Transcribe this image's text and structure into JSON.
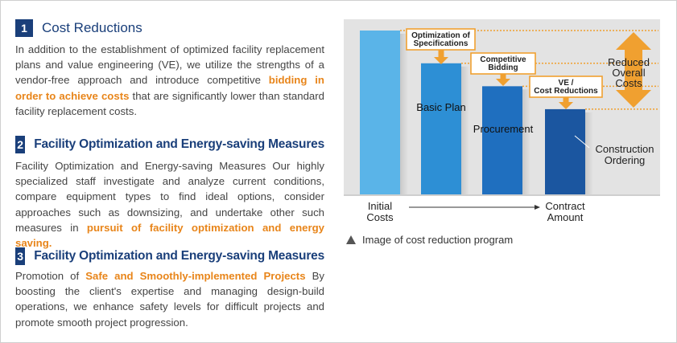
{
  "sections": [
    {
      "number": "1",
      "title": "Cost Reductions",
      "text_a": "In addition to the establishment of optimized facility replacement plans and value engineering (VE), we utilize the strengths of a vendor-free approach and introduce competitive ",
      "highlight": "bidding in order to achieve costs",
      "text_b": " that are significantly lower than standard facility replacement costs."
    },
    {
      "number": "2",
      "title": "Facility Optimization and Energy-saving Measures",
      "text_a": "Facility Optimization and Energy-saving Measures Our highly specialized staff investigate and analyze current conditions, compare equipment types to find ideal options, consider approaches such as downsizing, and undertake other such measures in ",
      "highlight": "pursuit of facility optimization and energy saving.",
      "text_b": ""
    },
    {
      "number": "3",
      "title": "Facility Optimization and Energy-saving Measures",
      "text_a": "Promotion of ",
      "highlight": "Safe and Smoothly-implemented Projects",
      "text_b": " By boosting the client's expertise and managing design-build operations, we enhance safety levels for difficult projects and promote smooth project progression."
    }
  ],
  "chart_data": {
    "type": "bar",
    "categories": [
      "Initial Costs",
      "Basic Plan",
      "Procurement",
      "Construction Ordering"
    ],
    "values": [
      100,
      80,
      66,
      52
    ],
    "colors": [
      "#5ab4e8",
      "#2d8fd5",
      "#1f6fbf",
      "#1b56a0"
    ],
    "bar_labels": [
      "",
      "Basic Plan",
      "Procurement",
      "Construction Ordering"
    ],
    "steps": [
      {
        "label": "Optimization of Specifications"
      },
      {
        "label": "Competitive Bidding"
      },
      {
        "label": "VE / Cost Reductions"
      }
    ],
    "reduced_label": "Reduced Overall Costs",
    "x_start_label": "Initial Costs",
    "x_end_label": "Contract Amount",
    "accent": "#f0a030",
    "background": "#e3e3e3"
  },
  "caption": "Image of cost reduction program"
}
